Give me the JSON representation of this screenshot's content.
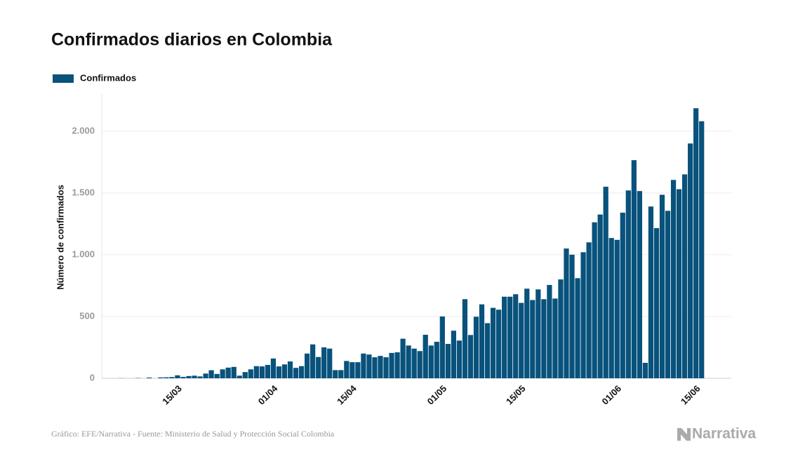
{
  "chart_data": {
    "type": "bar",
    "title": "Confirmados diarios en Colombia",
    "y_label": "Número de confirmados",
    "source": "Gráfico: EFE/Narrativa - Fuente: Ministerio de Salud y Protección Social Colombia",
    "logo": "Narrativa",
    "legend": "top-left",
    "grid": true,
    "categories": [
      null,
      null,
      null,
      null,
      null,
      null,
      null,
      null,
      null,
      "15/03",
      null,
      null,
      null,
      null,
      null,
      null,
      null,
      null,
      null,
      null,
      null,
      null,
      null,
      null,
      null,
      null,
      "01/04",
      null,
      null,
      null,
      null,
      null,
      null,
      null,
      null,
      null,
      null,
      null,
      null,
      null,
      "15/04",
      null,
      null,
      null,
      null,
      null,
      null,
      null,
      null,
      null,
      null,
      null,
      null,
      null,
      null,
      null,
      "01/05",
      null,
      null,
      null,
      null,
      null,
      null,
      null,
      null,
      null,
      null,
      null,
      null,
      null,
      "15/05",
      null,
      null,
      null,
      null,
      null,
      null,
      null,
      null,
      null,
      null,
      null,
      null,
      null,
      null,
      null,
      null,
      "01/06",
      null,
      null,
      null,
      null,
      null,
      null,
      null,
      null,
      null,
      null,
      null,
      null,
      null,
      "15/06",
      null,
      null
    ],
    "series": [
      {
        "name": "Confirmados",
        "color": "#08527c",
        "values": [
          1,
          0,
          0,
          2,
          0,
          6,
          0,
          7,
          8,
          10,
          24,
          11,
          18,
          21,
          15,
          38,
          65,
          35,
          72,
          86,
          92,
          21,
          50,
          72,
          98,
          96,
          108,
          160,
          96,
          112,
          136,
          84,
          98,
          200,
          274,
          172,
          250,
          240,
          66,
          66,
          140,
          130,
          130,
          200,
          192,
          170,
          181,
          170,
          205,
          210,
          320,
          265,
          240,
          220,
          352,
          265,
          295,
          500,
          278,
          385,
          305,
          640,
          350,
          498,
          598,
          446,
          570,
          555,
          660,
          660,
          680,
          610,
          725,
          633,
          719,
          640,
          755,
          645,
          800,
          1050,
          1000,
          810,
          1020,
          1100,
          1262,
          1325,
          1550,
          1135,
          1120,
          1340,
          1520,
          1765,
          1515,
          125,
          1390,
          1215,
          1485,
          1355,
          1605,
          1530,
          1650,
          1900,
          2185,
          2080
        ]
      }
    ],
    "ylim": [
      0,
      2300
    ],
    "yticks": [
      0,
      500,
      {
        "value": 1000,
        "label": "1.000"
      },
      {
        "value": 1500,
        "label": "1.500"
      },
      {
        "value": 2000,
        "label": "2.000"
      }
    ]
  }
}
